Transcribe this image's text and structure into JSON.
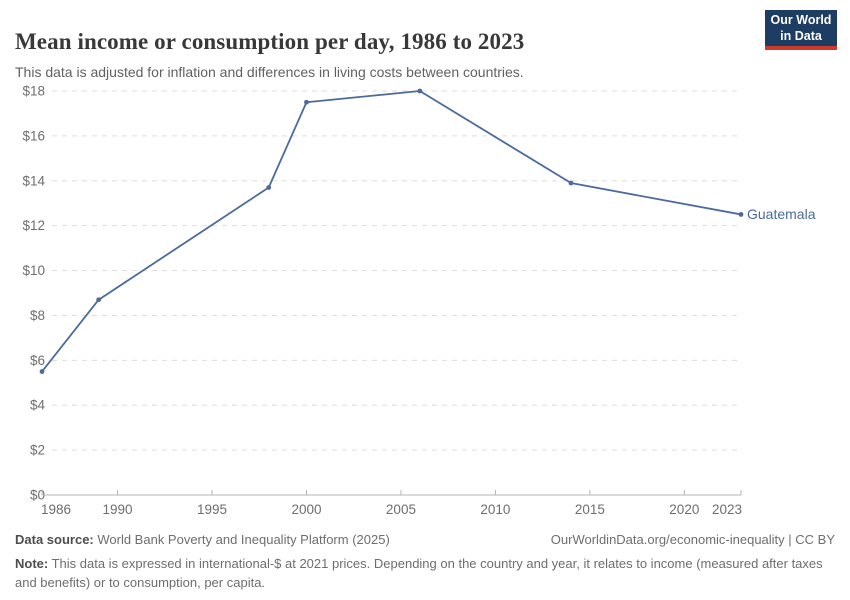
{
  "header": {
    "title": "Mean income or consumption per day, 1986 to 2023",
    "subtitle": "This data is adjusted for inflation and differences in living costs between countries.",
    "logo": {
      "line1": "Our World",
      "line2": "in Data"
    }
  },
  "colors": {
    "line": "#4c6a9c",
    "grid": "#dedede",
    "axis": "#b5b5b5",
    "tick_label": "#6e6e6e",
    "logo_bg": "#1d3d63",
    "logo_red": "#d1382c",
    "title_text": "#383838",
    "subtitle_text": "#616161"
  },
  "chart_data": {
    "type": "line",
    "title": "Mean income or consumption per day, 1986 to 2023",
    "xlabel": "",
    "ylabel": "",
    "xlim": [
      1986,
      2023
    ],
    "ylim": [
      0,
      18
    ],
    "x_ticks": [
      1986,
      1990,
      1995,
      2000,
      2005,
      2010,
      2015,
      2020,
      2023
    ],
    "y_ticks": [
      0,
      2,
      4,
      6,
      8,
      10,
      12,
      14,
      16,
      18
    ],
    "y_tick_prefix": "$",
    "grid": "horizontal-dashed",
    "legend_position": "end-of-line",
    "series": [
      {
        "name": "Guatemala",
        "color": "#4c6a9c",
        "x": [
          1986,
          1989,
          1998,
          2000,
          2006,
          2014,
          2023
        ],
        "values": [
          5.5,
          8.7,
          13.7,
          17.5,
          18.0,
          13.9,
          12.5
        ]
      }
    ]
  },
  "footer": {
    "datasource_label": "Data source:",
    "datasource": " World Bank Poverty and Inequality Platform (2025)",
    "link": "OurWorldinData.org/economic-inequality | CC BY",
    "note_label": "Note:",
    "note": " This data is expressed in international-$ at 2021 prices. Depending on the country and year, it relates to income (measured after taxes and benefits) or to consumption, per capita."
  }
}
